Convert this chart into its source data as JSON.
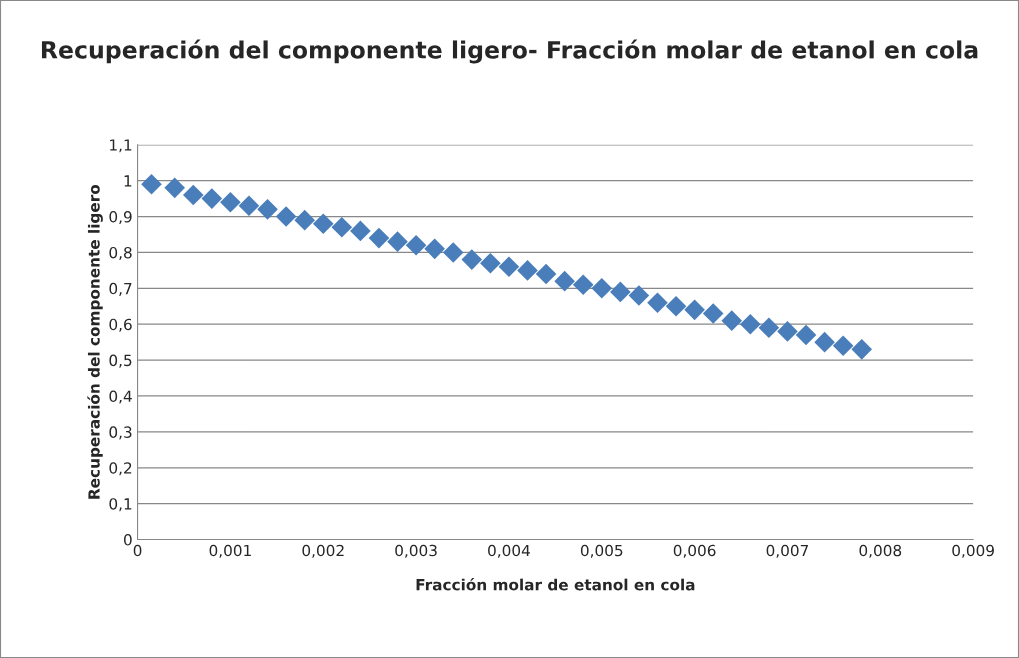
{
  "chart_data": {
    "type": "scatter",
    "title": "Recuperación del componente ligero- Fracción molar de etanol en cola",
    "xlabel": "Fracción molar de etanol en cola",
    "ylabel": "Recuperación del componente ligero",
    "x": [
      0.00015,
      0.0004,
      0.0006,
      0.0008,
      0.001,
      0.0012,
      0.0014,
      0.0016,
      0.0018,
      0.002,
      0.0022,
      0.0024,
      0.0026,
      0.0028,
      0.003,
      0.0032,
      0.0034,
      0.0036,
      0.0038,
      0.004,
      0.0042,
      0.0044,
      0.0046,
      0.0048,
      0.005,
      0.0052,
      0.0054,
      0.0056,
      0.0058,
      0.006,
      0.0062,
      0.0064,
      0.0066,
      0.0068,
      0.007,
      0.0072,
      0.0074,
      0.0076,
      0.0078
    ],
    "series": [
      {
        "color": "#4a7ebb",
        "values": [
          0.99,
          0.98,
          0.96,
          0.95,
          0.94,
          0.93,
          0.92,
          0.9,
          0.89,
          0.88,
          0.87,
          0.86,
          0.84,
          0.83,
          0.82,
          0.81,
          0.8,
          0.78,
          0.77,
          0.76,
          0.75,
          0.74,
          0.72,
          0.71,
          0.7,
          0.69,
          0.68,
          0.66,
          0.65,
          0.64,
          0.63,
          0.61,
          0.6,
          0.59,
          0.58,
          0.57,
          0.55,
          0.54,
          0.53
        ]
      }
    ],
    "marker": "diamond",
    "grid": "y",
    "xlim": [
      0,
      0.009
    ],
    "xticks": [
      0,
      {
        "value": 0.001,
        "label": "0,001"
      },
      {
        "value": 0.002,
        "label": "0,002"
      },
      {
        "value": 0.003,
        "label": "0,003"
      },
      {
        "value": 0.004,
        "label": "0,004"
      },
      {
        "value": 0.005,
        "label": "0,005"
      },
      {
        "value": 0.006,
        "label": "0,006"
      },
      {
        "value": 0.007,
        "label": "0,007"
      },
      {
        "value": 0.008,
        "label": "0,008"
      },
      {
        "value": 0.009,
        "label": "0,009"
      }
    ],
    "ylim": [
      0,
      1.1
    ],
    "yticks": [
      0,
      {
        "value": 0.1,
        "label": "0,1"
      },
      {
        "value": 0.2,
        "label": "0,2"
      },
      {
        "value": 0.3,
        "label": "0,3"
      },
      {
        "value": 0.4,
        "label": "0,4"
      },
      {
        "value": 0.5,
        "label": "0,5"
      },
      {
        "value": 0.6,
        "label": "0,6"
      },
      {
        "value": 0.7,
        "label": "0,7"
      },
      {
        "value": 0.8,
        "label": "0,8"
      },
      {
        "value": 0.9,
        "label": "0,9"
      },
      1,
      {
        "value": 1.1,
        "label": "1,1"
      }
    ]
  }
}
